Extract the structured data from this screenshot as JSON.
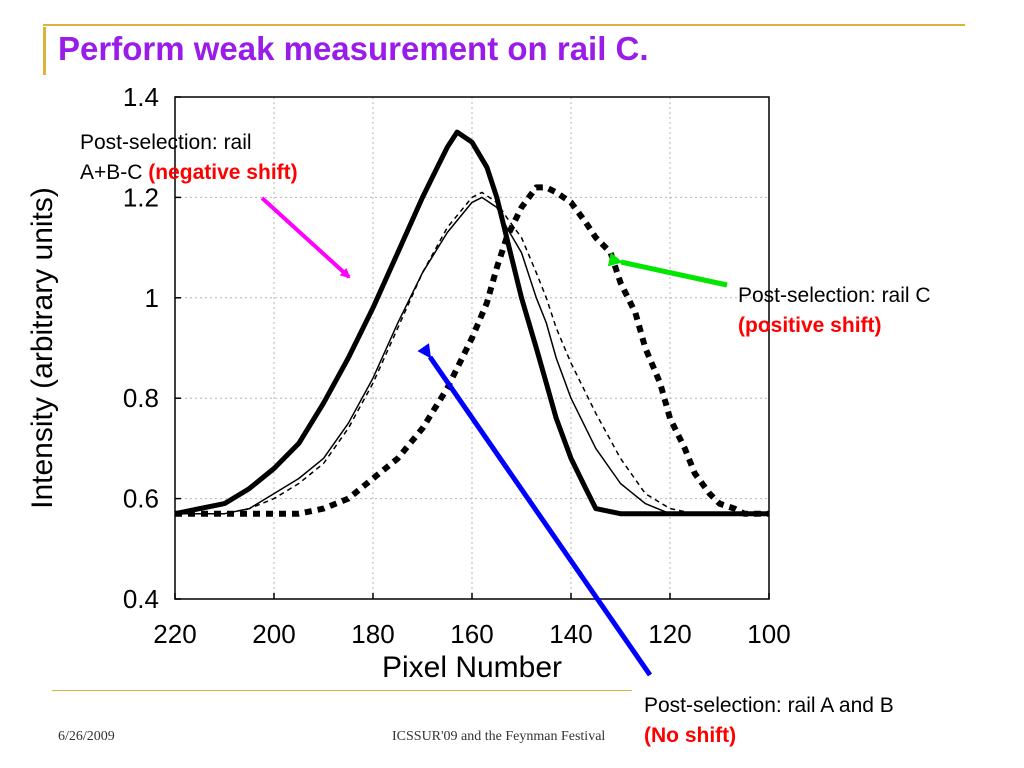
{
  "slide": {
    "title": "Perform weak measurement on rail C.",
    "footer_date": "6/26/2009",
    "footer_conference": "ICSSUR'09 and the Feynman Festival"
  },
  "annotations": {
    "negative": {
      "line1": "Post-selection: rail",
      "line2_prefix": "A+B-C ",
      "emphasis": "(negative shift)",
      "arrow_color": "#ff00ff"
    },
    "positive": {
      "line1": "Post-selection: rail C",
      "emphasis": "(positive shift)",
      "arrow_color": "#00e600"
    },
    "none": {
      "line1": "Post-selection: rail A and B",
      "emphasis": "(No shift)",
      "arrow_color": "#0000ff"
    }
  },
  "colors": {
    "title": "#9a1ce8",
    "accent_rule": "#d9b33c",
    "emphasis": "#ff0000"
  },
  "chart_data": {
    "type": "line",
    "title": "",
    "xlabel": "Pixel Number",
    "ylabel": "Intensity (arbitrary units)",
    "xlim": [
      220,
      100
    ],
    "ylim": [
      0.4,
      1.4
    ],
    "x_reversed": true,
    "xticks": [
      "220",
      "200",
      "180",
      "160",
      "140",
      "120",
      "100"
    ],
    "yticks": [
      "0.4",
      "0.6",
      "0.8",
      "1",
      "1.2",
      "1.4"
    ],
    "xtick_values": [
      220,
      200,
      180,
      160,
      140,
      120,
      100
    ],
    "ytick_values": [
      0.4,
      0.6,
      0.8,
      1.0,
      1.2,
      1.4
    ],
    "grid": true,
    "series": [
      {
        "style": "thick-solid",
        "x": [
          220,
          215,
          210,
          205,
          200,
          195,
          190,
          185,
          180,
          175,
          170,
          167,
          165,
          163,
          160,
          157,
          155,
          153,
          150,
          147,
          145,
          143,
          140,
          137,
          135,
          130,
          125,
          120,
          115,
          110,
          105,
          100
        ],
        "y": [
          0.57,
          0.58,
          0.59,
          0.62,
          0.66,
          0.71,
          0.79,
          0.88,
          0.98,
          1.09,
          1.2,
          1.26,
          1.3,
          1.33,
          1.31,
          1.26,
          1.2,
          1.12,
          1.0,
          0.9,
          0.83,
          0.76,
          0.68,
          0.62,
          0.58,
          0.57,
          0.57,
          0.57,
          0.57,
          0.57,
          0.57,
          0.57
        ]
      },
      {
        "style": "thin-solid",
        "x": [
          220,
          210,
          205,
          200,
          195,
          190,
          185,
          180,
          175,
          170,
          165,
          160,
          158,
          155,
          153,
          150,
          147,
          145,
          143,
          140,
          135,
          130,
          125,
          120,
          115,
          110,
          100
        ],
        "y": [
          0.57,
          0.57,
          0.58,
          0.61,
          0.64,
          0.68,
          0.75,
          0.84,
          0.95,
          1.05,
          1.13,
          1.19,
          1.2,
          1.18,
          1.14,
          1.09,
          1.0,
          0.95,
          0.88,
          0.8,
          0.7,
          0.63,
          0.59,
          0.57,
          0.57,
          0.57,
          0.57
        ]
      },
      {
        "style": "thin-dashed",
        "x": [
          220,
          210,
          205,
          200,
          195,
          190,
          185,
          180,
          175,
          170,
          165,
          160,
          158,
          155,
          153,
          150,
          147,
          145,
          143,
          140,
          135,
          130,
          125,
          120,
          115,
          110,
          100
        ],
        "y": [
          0.57,
          0.57,
          0.58,
          0.6,
          0.63,
          0.67,
          0.74,
          0.83,
          0.94,
          1.05,
          1.14,
          1.2,
          1.21,
          1.19,
          1.16,
          1.12,
          1.05,
          1.0,
          0.94,
          0.87,
          0.77,
          0.68,
          0.61,
          0.58,
          0.57,
          0.57,
          0.57
        ]
      },
      {
        "style": "thick-dashed",
        "x": [
          220,
          205,
          200,
          195,
          190,
          185,
          180,
          175,
          170,
          165,
          160,
          157,
          155,
          153,
          150,
          147,
          145,
          143,
          140,
          137,
          135,
          132,
          130,
          127,
          125,
          122,
          120,
          117,
          115,
          112,
          110,
          107,
          105,
          100
        ],
        "y": [
          0.57,
          0.57,
          0.57,
          0.57,
          0.58,
          0.6,
          0.64,
          0.68,
          0.74,
          0.82,
          0.92,
          0.99,
          1.06,
          1.12,
          1.18,
          1.22,
          1.22,
          1.21,
          1.19,
          1.15,
          1.12,
          1.09,
          1.03,
          0.97,
          0.9,
          0.83,
          0.76,
          0.7,
          0.65,
          0.61,
          0.59,
          0.58,
          0.57,
          0.57
        ]
      }
    ]
  }
}
